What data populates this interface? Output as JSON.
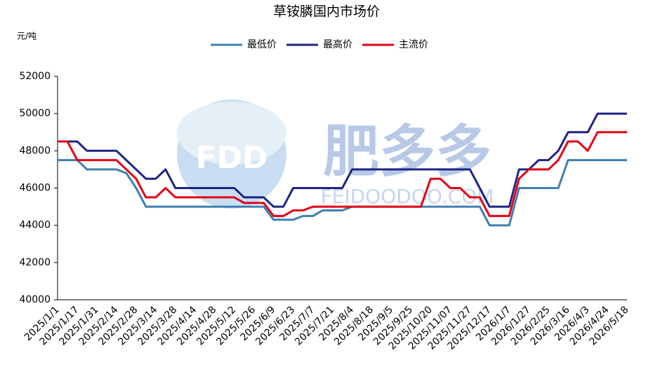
{
  "chart_data": {
    "type": "line",
    "title": "草铵膦国内市场价",
    "y_label": "元/吨",
    "watermark": {
      "logo": "FDD",
      "name": "肥多多",
      "site": "FEIDOODOO.COM"
    },
    "categories": [
      "2025/1/1",
      null,
      "2025/1/17",
      null,
      "2025/1/31",
      null,
      "2025/2/14",
      null,
      "2025/2/28",
      null,
      "2025/3/14",
      null,
      "2025/3/28",
      null,
      "2025/4/14",
      null,
      "2025/4/28",
      null,
      "2025/5/12",
      null,
      "2025/5/26",
      null,
      "2025/6/9",
      null,
      "2025/6/23",
      null,
      "2025/7/7",
      null,
      "2025/7/21",
      null,
      "2025/8/4",
      null,
      "2025/8/18",
      null,
      "2025/9/5",
      null,
      "2025/9/25",
      null,
      "2025/10/20",
      null,
      "2025/11/07",
      null,
      "2025/11/27",
      null,
      "2025/12/17",
      null,
      "2026/1/7",
      null,
      "2026/1/27",
      null,
      "2026/2/25",
      null,
      "2026/3/16",
      null,
      "2026/4/3",
      null,
      "2026/4/24",
      null,
      "2026/5/18"
    ],
    "series": [
      {
        "name": "最低价",
        "color": "#3f7fb1",
        "values": [
          47500,
          47500,
          47500,
          47000,
          47000,
          47000,
          47000,
          46800,
          46000,
          45000,
          45000,
          45000,
          45000,
          45000,
          45000,
          45000,
          45000,
          45000,
          45000,
          45000,
          45000,
          45000,
          44300,
          44300,
          44300,
          44500,
          44500,
          44800,
          44800,
          44800,
          45000,
          45000,
          45000,
          45000,
          45000,
          45000,
          45000,
          45000,
          45000,
          45000,
          45000,
          45000,
          45000,
          45000,
          44000,
          44000,
          44000,
          46000,
          46000,
          46000,
          46000,
          46000,
          47500,
          47500,
          47500,
          47500,
          47500,
          47500,
          47500
        ]
      },
      {
        "name": "最高价",
        "color": "#1c2585",
        "values": [
          48500,
          48500,
          48500,
          48000,
          48000,
          48000,
          48000,
          47500,
          47000,
          46500,
          46500,
          47000,
          46000,
          46000,
          46000,
          46000,
          46000,
          46000,
          46000,
          45500,
          45500,
          45500,
          45000,
          45000,
          46000,
          46000,
          46000,
          46000,
          46000,
          46000,
          47000,
          47000,
          47000,
          47000,
          47000,
          47000,
          47000,
          47000,
          47000,
          47000,
          47000,
          47000,
          47000,
          46000,
          45000,
          45000,
          45000,
          47000,
          47000,
          47500,
          47500,
          48000,
          49000,
          49000,
          49000,
          50000,
          50000,
          50000,
          50000
        ]
      },
      {
        "name": "主流价",
        "color": "#e60012",
        "values": [
          48500,
          48500,
          47500,
          47500,
          47500,
          47500,
          47500,
          47000,
          46500,
          45500,
          45500,
          46000,
          45500,
          45500,
          45500,
          45500,
          45500,
          45500,
          45500,
          45200,
          45200,
          45200,
          44500,
          44500,
          44800,
          44800,
          45000,
          45000,
          45000,
          45000,
          45000,
          45000,
          45000,
          45000,
          45000,
          45000,
          45000,
          45000,
          46500,
          46500,
          46000,
          46000,
          45500,
          45500,
          44500,
          44500,
          44500,
          46500,
          47000,
          47000,
          47000,
          47500,
          48500,
          48500,
          48000,
          49000,
          49000,
          49000,
          49000
        ]
      }
    ],
    "ylim": [
      40000,
      52000
    ],
    "yticks": [
      40000,
      42000,
      44000,
      46000,
      48000,
      50000,
      52000
    ],
    "legend": "top"
  }
}
